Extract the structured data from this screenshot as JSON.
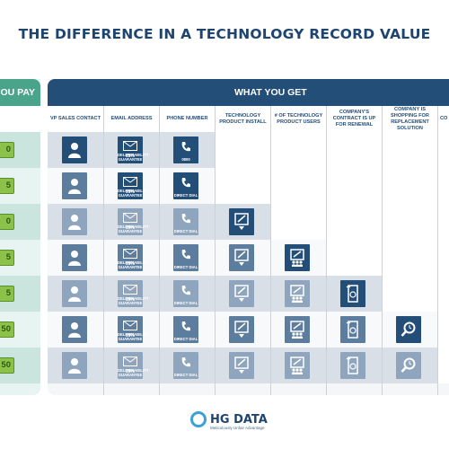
{
  "title": "THE DIFFERENCE IN A TECHNOLOGY RECORD VALUE",
  "pay": {
    "header": "YOU PAY",
    "amounts": [
      "0",
      "5",
      "0",
      "5",
      "5",
      "50",
      "50"
    ]
  },
  "get": {
    "header": "WHAT YOU GET",
    "columns": [
      "VP SALES CONTACT",
      "EMAIL ADDRESS",
      "PHONE NUMBER",
      "TECHNOLOGY PRODUCT INSTALL",
      "# OF TECHNOLOGY PRODUCT USERS",
      "COMPANY'S CONTRACT IS UP FOR RENEWAL",
      "COMPANY IS SHOPPING FOR REPLACEMENT SOLUTION",
      "CO KE"
    ],
    "email_pcts": [
      "85%",
      "99%",
      "99%",
      "99%",
      "99%",
      "99%",
      "99%"
    ],
    "email_sub": "DELIVERABILITY GUARANTEE",
    "phone_subs": [
      "0800",
      "DIRECT DIAL",
      "DIRECT DIAL",
      "DIRECT DIAL",
      "DIRECT DIAL",
      "DIRECT DIAL",
      "DIRECT DIAL"
    ]
  },
  "logo": {
    "name": "HG DATA",
    "tagline": "Meticulously Unfair Advantage"
  },
  "colors": {
    "title": "#1e4470",
    "header_navy": "#234e78",
    "pay_green": "#49a489",
    "money_green": "#8bc34a"
  }
}
